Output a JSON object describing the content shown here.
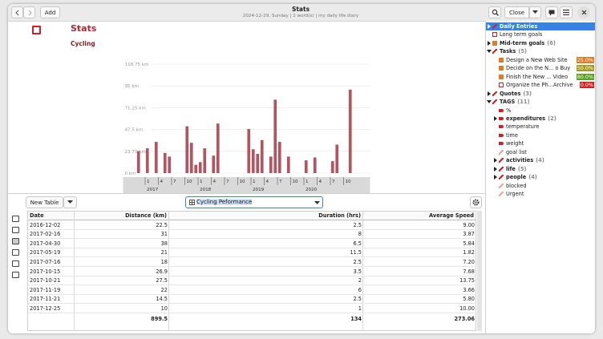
{
  "header": {
    "back": "",
    "add": "Add",
    "title": "Stats",
    "subtitle": "2024-12-29, Sunday | 2 word(s) | my daily life.diary",
    "close": "Close"
  },
  "document": {
    "heading": "Stats",
    "subheading": "Cycling"
  },
  "chart_data": {
    "type": "bar",
    "color": "#b35560",
    "ylim": [
      0,
      118.75
    ],
    "yticks": [
      {
        "value": 0,
        "label": "0 km"
      },
      {
        "value": 23.75,
        "label": "23.75 km"
      },
      {
        "value": 47.5,
        "label": "47.5 km"
      },
      {
        "value": 71.25,
        "label": "71.25 km"
      },
      {
        "value": 95,
        "label": "95 km"
      },
      {
        "value": 118.75,
        "label": "118.75 km"
      }
    ],
    "categories": [
      null,
      null,
      null,
      null,
      null,
      "1",
      null,
      null,
      "4",
      null,
      null,
      "7",
      null,
      null,
      "10",
      null,
      null,
      "1",
      null,
      null,
      "4",
      null,
      null,
      "7",
      null,
      null,
      "10",
      null,
      null,
      "1",
      null,
      null,
      "4",
      null,
      null,
      "7",
      null,
      null,
      "10",
      null,
      null,
      "1",
      null,
      null,
      "4",
      null,
      null,
      "7",
      null,
      null,
      "10",
      null,
      null,
      null,
      null,
      null
    ],
    "values": [
      0,
      0,
      0,
      24,
      0,
      27,
      0,
      34,
      0,
      22,
      18,
      0,
      0,
      0,
      51,
      33,
      9,
      12,
      27,
      0,
      19,
      54,
      0,
      0,
      0,
      0,
      0,
      0,
      48,
      26,
      21,
      36,
      0,
      18,
      80,
      34,
      0,
      18,
      0,
      0,
      0,
      14,
      0,
      17,
      0,
      0,
      0,
      13,
      31,
      0,
      0,
      91,
      0,
      0,
      0,
      0
    ],
    "years": [
      "2017",
      "2018",
      "2019",
      "2020"
    ]
  },
  "toolbar": {
    "new_table": "New Table",
    "table_name": "Cycling Peformance"
  },
  "table": {
    "columns": [
      "Date",
      "Distance (km)",
      "Duration (hrs)",
      "Average Speed"
    ],
    "rows": [
      [
        "2016-12-02",
        "22.5",
        "2.5",
        "9.00"
      ],
      [
        "2017-02-16",
        "31",
        "8",
        "3.87"
      ],
      [
        "2017-04-30",
        "38",
        "6.5",
        "5.84"
      ],
      [
        "2017-05-19",
        "21",
        "11.5",
        "1.82"
      ],
      [
        "2017-07-16",
        "18",
        "2.5",
        "7.20"
      ],
      [
        "2017-10-15",
        "26.9",
        "3.5",
        "7.68"
      ],
      [
        "2017-10-21",
        "27.5",
        "2",
        "13.75"
      ],
      [
        "2017-11-19",
        "22",
        "6",
        "3.66"
      ],
      [
        "2017-11-21",
        "14.5",
        "2.5",
        "5.80"
      ],
      [
        "2017-12-25",
        "10",
        "1",
        "10.00"
      ]
    ],
    "totals": [
      "899.5",
      "134",
      "273.06"
    ]
  },
  "sidebar": {
    "items": [
      {
        "label": "Daily Entries"
      },
      {
        "label": "Long term goals"
      },
      {
        "label": "Mid-term goals",
        "count": "(6)"
      },
      {
        "label": "Tasks",
        "count": "(5)"
      },
      {
        "label": "Design a New Web Site",
        "badge": "25.0%"
      },
      {
        "label": "Decide on the N... o Buy",
        "badge": "50.0%"
      },
      {
        "label": "Finish the New ... Video",
        "badge": "80.0%"
      },
      {
        "label": "Organize the Ph...Archive",
        "badge": "0.0%"
      },
      {
        "label": "Quotes",
        "count": "(3)"
      },
      {
        "label": "TAGS",
        "count": "(11)"
      },
      {
        "label": "%"
      },
      {
        "label": "expenditures",
        "count": "(2)"
      },
      {
        "label": "temperature"
      },
      {
        "label": "time"
      },
      {
        "label": "weight"
      },
      {
        "label": "goal list"
      },
      {
        "label": "activities",
        "count": "(4)"
      },
      {
        "label": "life",
        "count": "(5)"
      },
      {
        "label": "people",
        "count": "(4)"
      },
      {
        "label": "blocked"
      },
      {
        "label": "Urgent"
      }
    ]
  }
}
